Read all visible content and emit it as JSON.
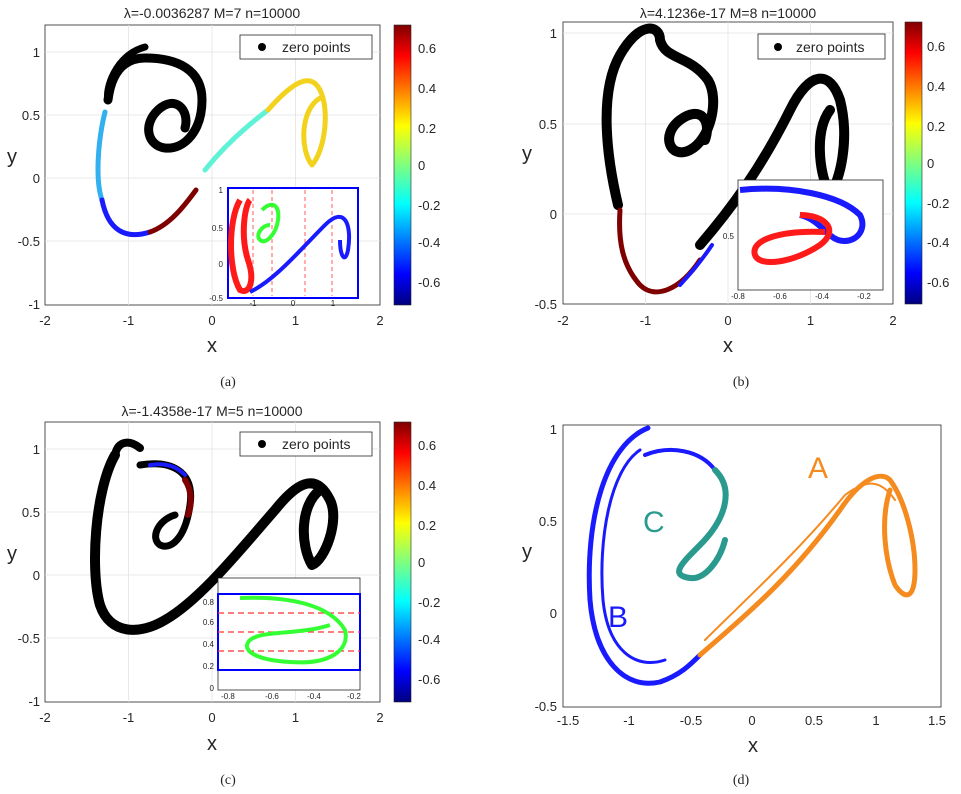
{
  "panels": {
    "a": {
      "caption": "(a)",
      "title": "λ=-0.0036287   M=7   n=10000",
      "xlabel": "x",
      "ylabel": "y",
      "xticks": [
        "-2",
        "-1",
        "0",
        "1",
        "2"
      ],
      "yticks": [
        "1",
        "0.5",
        "0",
        "-0.5",
        "-1"
      ],
      "legend": "zero points",
      "colorbar_ticks": [
        "0.6",
        "0.4",
        "0.2",
        "0",
        "-0.2",
        "-0.4",
        "-0.6"
      ],
      "inset_xticks": [
        "-1",
        "0",
        "1"
      ],
      "inset_yticks": [
        "1",
        "0.5",
        "0",
        "-0.5"
      ]
    },
    "b": {
      "caption": "(b)",
      "title": "λ=4.1236e-17   M=8   n=10000",
      "xlabel": "x",
      "ylabel": "y",
      "xticks": [
        "-2",
        "-1",
        "0",
        "1",
        "2"
      ],
      "yticks": [
        "1",
        "0.5",
        "0",
        "-0.5"
      ],
      "legend": "zero points",
      "colorbar_ticks": [
        "0.6",
        "0.4",
        "0.2",
        "0",
        "-0.2",
        "-0.4",
        "-0.6"
      ],
      "inset_xticks": [
        "-0.8",
        "-0.6",
        "-0.4",
        "-0.2"
      ],
      "inset_yticks": [
        "0.5"
      ]
    },
    "c": {
      "caption": "(c)",
      "title": "λ=-1.4358e-17   M=5   n=10000",
      "xlabel": "x",
      "ylabel": "y",
      "xticks": [
        "-2",
        "-1",
        "0",
        "1",
        "2"
      ],
      "yticks": [
        "1",
        "0.5",
        "0",
        "-0.5",
        "-1"
      ],
      "legend": "zero points",
      "colorbar_ticks": [
        "0.6",
        "0.4",
        "0.2",
        "0",
        "-0.2",
        "-0.4",
        "-0.6"
      ],
      "inset_xticks": [
        "-0.8",
        "-0.6",
        "-0.4",
        "-0.2"
      ],
      "inset_yticks": [
        "0.8",
        "0.6",
        "0.4",
        "0.2",
        "0"
      ]
    },
    "d": {
      "caption": "(d)",
      "xlabel": "x",
      "ylabel": "y",
      "xticks": [
        "-1.5",
        "-1",
        "-0.5",
        "0",
        "0.5",
        "1",
        "1.5"
      ],
      "yticks": [
        "1",
        "0.5",
        "0",
        "-0.5"
      ],
      "labels": {
        "A": "A",
        "B": "B",
        "C": "C"
      }
    }
  },
  "colors": {
    "zero": "#000000",
    "dark_red": "#7f0000",
    "red": "#ff1a1a",
    "yellow": "#f2d21c",
    "cyan": "#5ff2d6",
    "light_blue": "#33b0f0",
    "blue": "#1a1aff",
    "green": "#33ff33",
    "orange": "#f58b1f",
    "teal": "#2a9a8f",
    "inset_frame": "#0000ff",
    "inset_dash": "#ff3333"
  },
  "chart_data": [
    {
      "type": "scatter",
      "panel": "a",
      "title": "λ=-0.0036287   M=7   n=10000",
      "xlabel": "x",
      "ylabel": "y",
      "xlim": [
        -2,
        2
      ],
      "ylim": [
        -1,
        1.2
      ],
      "legend": [
        "zero points"
      ],
      "legend_position": "top-right",
      "colorbar_range": [
        -0.72,
        0.72
      ],
      "grid": true
    },
    {
      "type": "scatter",
      "panel": "b",
      "title": "λ=4.1236e-17   M=8   n=10000",
      "xlabel": "x",
      "ylabel": "y",
      "xlim": [
        -2,
        2
      ],
      "ylim": [
        -0.5,
        1.05
      ],
      "legend": [
        "zero points"
      ],
      "legend_position": "top-right",
      "colorbar_range": [
        -0.72,
        0.72
      ],
      "grid": true
    },
    {
      "type": "scatter",
      "panel": "c",
      "title": "λ=-1.4358e-17   M=5   n=10000",
      "xlabel": "x",
      "ylabel": "y",
      "xlim": [
        -2,
        2
      ],
      "ylim": [
        -1,
        1.2
      ],
      "legend": [
        "zero points"
      ],
      "legend_position": "top-right",
      "colorbar_range": [
        -0.72,
        0.72
      ],
      "grid": true
    },
    {
      "type": "scatter",
      "panel": "d",
      "xlabel": "x",
      "ylabel": "y",
      "xlim": [
        -1.5,
        1.5
      ],
      "ylim": [
        -0.5,
        1.03
      ],
      "region_labels": [
        "A",
        "B",
        "C"
      ],
      "grid": false
    }
  ]
}
